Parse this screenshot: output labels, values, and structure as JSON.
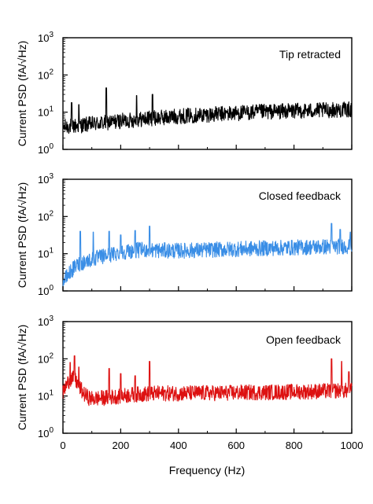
{
  "figure": {
    "xlabel": "Frequency (Hz)",
    "ylabel": "Current PSD (fA/√Hz)"
  },
  "chart_data": [
    {
      "type": "line",
      "title": "Tip retracted",
      "xlabel": "",
      "ylabel": "Current PSD (fA/√Hz)",
      "xlim": [
        0,
        1000
      ],
      "ylim": [
        1,
        1000
      ],
      "yscale": "log",
      "yticks": [
        1,
        10,
        100,
        1000
      ],
      "ytick_labels": [
        {
          "b": "10",
          "e": "0"
        },
        {
          "b": "10",
          "e": "1"
        },
        {
          "b": "10",
          "e": "2"
        },
        {
          "b": "10",
          "e": "3"
        }
      ],
      "xticks": [
        0,
        200,
        400,
        600,
        800,
        1000
      ],
      "grid": false,
      "series": [
        {
          "color": "#000000",
          "x": [
            0,
            25,
            50,
            75,
            100,
            125,
            150,
            175,
            200,
            225,
            250,
            275,
            300,
            325,
            350,
            375,
            400,
            450,
            500,
            550,
            600,
            650,
            700,
            750,
            800,
            850,
            900,
            950,
            1000
          ],
          "y": [
            4,
            4.2,
            4.3,
            4.6,
            4.8,
            5,
            5.2,
            5.5,
            5.8,
            6,
            6.2,
            6.5,
            6.8,
            7,
            7.2,
            7.5,
            7.8,
            8.2,
            8.6,
            9,
            9.4,
            9.8,
            10.2,
            10.5,
            10.8,
            11,
            11.2,
            11.5,
            11.8
          ],
          "peaks": [
            {
              "x": 30,
              "y": 18
            },
            {
              "x": 55,
              "y": 16
            },
            {
              "x": 150,
              "y": 45
            },
            {
              "x": 255,
              "y": 28
            },
            {
              "x": 310,
              "y": 30
            }
          ]
        }
      ]
    },
    {
      "type": "line",
      "title": "Closed feedback",
      "xlabel": "",
      "ylabel": "Current PSD (fA/√Hz)",
      "xlim": [
        0,
        1000
      ],
      "ylim": [
        1,
        1000
      ],
      "yscale": "log",
      "yticks": [
        1,
        10,
        100,
        1000
      ],
      "ytick_labels": [
        {
          "b": "10",
          "e": "0"
        },
        {
          "b": "10",
          "e": "1"
        },
        {
          "b": "10",
          "e": "2"
        },
        {
          "b": "10",
          "e": "3"
        }
      ],
      "xticks": [
        0,
        200,
        400,
        600,
        800,
        1000
      ],
      "grid": false,
      "series": [
        {
          "color": "#3a8ee6",
          "x": [
            0,
            10,
            20,
            30,
            40,
            50,
            60,
            80,
            100,
            120,
            140,
            160,
            180,
            200,
            220,
            240,
            260,
            280,
            300,
            350,
            400,
            450,
            500,
            550,
            600,
            650,
            700,
            750,
            800,
            850,
            900,
            950,
            1000
          ],
          "y": [
            1.8,
            2.2,
            2.8,
            3.5,
            4.2,
            5,
            5.5,
            6.3,
            7,
            7.8,
            8.5,
            9.2,
            10,
            10.8,
            11.5,
            12,
            12.5,
            12.8,
            12.5,
            12.2,
            12,
            12.3,
            12.6,
            13,
            13.3,
            13.6,
            14,
            14.3,
            14.6,
            15,
            15.3,
            15.6,
            16
          ],
          "peaks": [
            {
              "x": 60,
              "y": 40
            },
            {
              "x": 105,
              "y": 38
            },
            {
              "x": 160,
              "y": 40
            },
            {
              "x": 200,
              "y": 32
            },
            {
              "x": 250,
              "y": 42
            },
            {
              "x": 300,
              "y": 55
            },
            {
              "x": 930,
              "y": 65
            },
            {
              "x": 960,
              "y": 45
            },
            {
              "x": 995,
              "y": 38
            }
          ]
        }
      ]
    },
    {
      "type": "line",
      "title": "Open feedback",
      "xlabel": "Frequency (Hz)",
      "ylabel": "Current PSD (fA/√Hz)",
      "xlim": [
        0,
        1000
      ],
      "ylim": [
        1,
        1000
      ],
      "yscale": "log",
      "yticks": [
        1,
        10,
        100,
        1000
      ],
      "ytick_labels": [
        {
          "b": "10",
          "e": "0"
        },
        {
          "b": "10",
          "e": "1"
        },
        {
          "b": "10",
          "e": "2"
        },
        {
          "b": "10",
          "e": "3"
        }
      ],
      "xticks": [
        0,
        200,
        400,
        600,
        800,
        1000
      ],
      "xtick_labels": [
        "0",
        "200",
        "400",
        "600",
        "800",
        "1000"
      ],
      "grid": false,
      "series": [
        {
          "color": "#dd1111",
          "x": [
            0,
            10,
            20,
            30,
            40,
            50,
            60,
            70,
            80,
            90,
            100,
            150,
            200,
            250,
            300,
            350,
            400,
            450,
            500,
            550,
            600,
            650,
            700,
            750,
            800,
            850,
            900,
            950,
            1000
          ],
          "y": [
            12,
            18,
            25,
            30,
            28,
            22,
            16,
            12,
            10,
            9,
            8.5,
            9,
            10,
            11,
            11.5,
            11.8,
            11.8,
            12,
            12,
            12,
            12.3,
            12.5,
            12.5,
            12.8,
            13,
            13.2,
            13.5,
            14,
            14
          ],
          "peaks": [
            {
              "x": 40,
              "y": 120
            },
            {
              "x": 25,
              "y": 80
            },
            {
              "x": 55,
              "y": 60
            },
            {
              "x": 160,
              "y": 55
            },
            {
              "x": 200,
              "y": 40
            },
            {
              "x": 250,
              "y": 35
            },
            {
              "x": 300,
              "y": 85
            },
            {
              "x": 930,
              "y": 100
            },
            {
              "x": 965,
              "y": 85
            },
            {
              "x": 990,
              "y": 45
            }
          ]
        }
      ]
    }
  ]
}
